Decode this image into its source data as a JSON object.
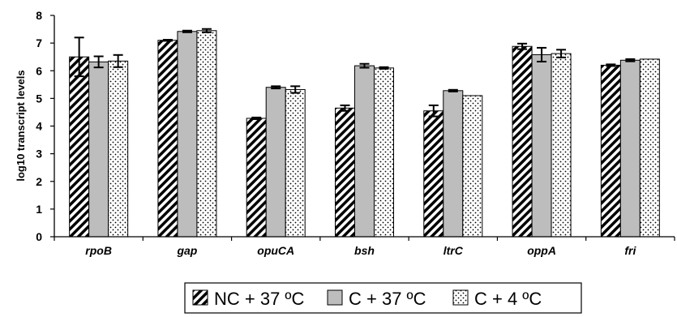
{
  "chart_data": {
    "type": "bar",
    "categories": [
      "rpoB",
      "gap",
      "opuCA",
      "bsh",
      "ltrC",
      "oppA",
      "fri"
    ],
    "ylabel": "log10 transcript levels",
    "ylim": [
      0,
      8
    ],
    "yticks": [
      0,
      1,
      2,
      3,
      4,
      5,
      6,
      7,
      8
    ],
    "grid": false,
    "legend": "bottom",
    "series": [
      {
        "name": "NC + 37 ºC",
        "pattern": "diagonal-hatch",
        "color": "#000000",
        "values": [
          6.5,
          7.1,
          4.28,
          4.65,
          4.55,
          6.88,
          6.2
        ],
        "errors": [
          0.7,
          0.02,
          0.03,
          0.1,
          0.2,
          0.1,
          0.03
        ]
      },
      {
        "name": "C + 37 ºC",
        "pattern": "solid",
        "color": "#bdbdbd",
        "values": [
          6.32,
          7.42,
          5.4,
          6.18,
          5.28,
          6.58,
          6.38
        ],
        "errors": [
          0.2,
          0.03,
          0.04,
          0.07,
          0.03,
          0.25,
          0.04
        ]
      },
      {
        "name": "C + 4 ºC",
        "pattern": "dotted",
        "color": "#ffffff",
        "values": [
          6.35,
          7.45,
          5.32,
          6.1,
          5.1,
          6.62,
          6.42
        ],
        "errors": [
          0.22,
          0.06,
          0.12,
          0.03,
          0.0,
          0.14,
          0.0
        ]
      }
    ]
  }
}
